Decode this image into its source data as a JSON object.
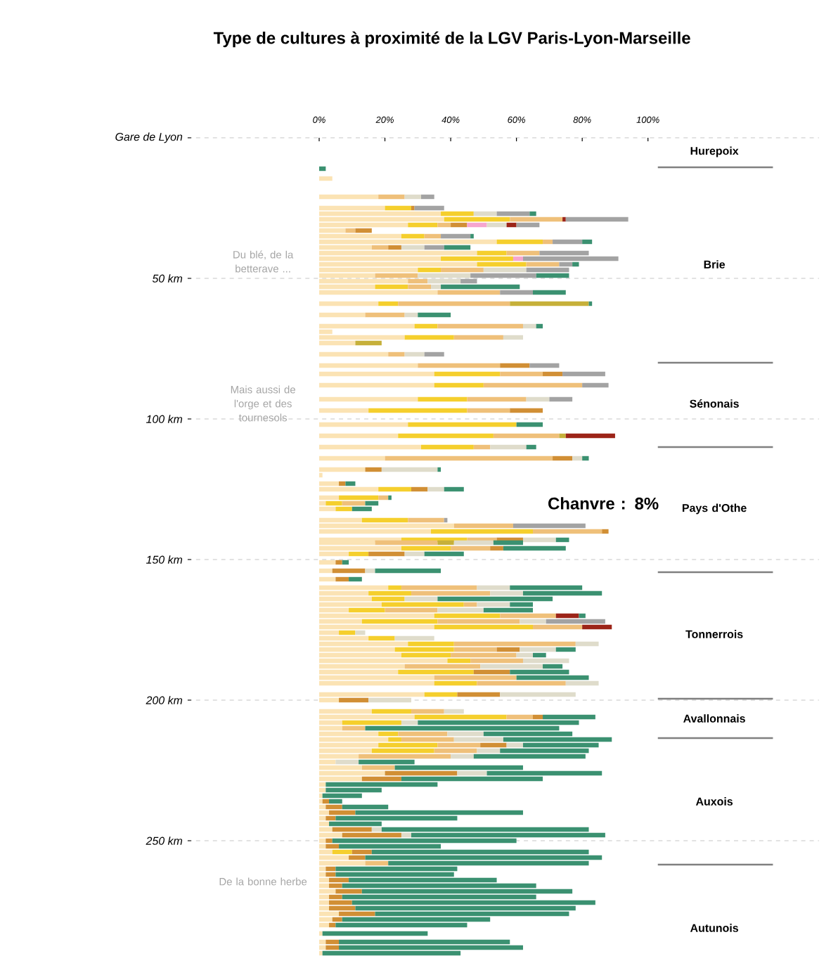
{
  "chart_data": {
    "type": "bar",
    "orientation": "horizontal",
    "stacked": true,
    "title": "Type de cultures à proximité de la LGV Paris-Lyon-Marseille",
    "x": [
      11,
      14.5,
      21,
      25,
      27,
      29,
      31,
      33,
      35,
      37,
      39,
      41,
      43,
      45,
      47,
      49,
      51,
      53,
      55,
      59,
      63,
      67,
      69,
      71,
      73,
      77,
      81,
      84,
      88,
      93,
      97,
      102,
      106,
      110,
      114,
      118,
      120,
      123,
      125,
      128,
      130,
      132,
      136,
      138,
      140,
      143,
      144,
      146,
      148,
      151,
      154,
      157,
      160,
      162,
      164,
      166,
      168,
      170,
      172,
      174,
      176,
      178,
      180,
      182,
      184,
      186,
      188,
      190,
      192,
      194,
      198,
      200,
      204,
      206,
      208,
      210,
      212,
      214,
      216,
      218,
      220,
      222,
      224,
      226,
      228,
      230,
      232,
      234,
      236,
      238,
      240,
      242,
      244,
      246,
      248,
      250,
      252,
      254,
      256,
      258,
      260,
      262,
      264,
      266,
      268,
      270,
      272,
      274,
      276,
      278,
      280,
      283,
      286,
      288,
      290
    ],
    "series": [
      {
        "color": "#fbe3b4",
        "values": [
          null,
          4,
          18,
          20,
          37,
          38,
          27,
          8,
          25,
          54,
          16,
          48,
          37,
          48,
          30,
          17,
          27,
          17,
          36,
          18,
          14,
          29,
          4,
          26,
          11,
          21,
          30,
          35,
          35,
          30,
          15,
          27,
          24,
          31,
          20,
          14,
          1,
          6,
          18,
          6,
          2,
          5,
          13,
          41,
          34,
          25,
          17,
          25,
          9,
          5,
          4,
          5,
          21,
          15,
          16,
          19,
          9,
          35,
          13,
          35,
          6,
          15,
          27,
          23,
          25,
          39,
          26,
          24,
          35,
          35,
          32,
          6,
          16,
          29,
          7,
          7,
          18,
          21,
          18,
          16,
          12,
          5,
          13,
          20,
          13,
          2,
          2,
          1,
          1,
          2,
          3,
          2,
          3,
          4,
          7,
          2,
          2,
          4,
          9,
          14,
          2,
          2,
          3,
          3,
          5,
          3,
          3,
          3,
          6,
          4,
          3,
          1,
          2,
          2,
          1
        ]
      },
      {
        "color": "#f5cf2d",
        "values": [
          null,
          null,
          null,
          8,
          10,
          20,
          9,
          null,
          7,
          14,
          null,
          9,
          22,
          15,
          7,
          null,
          null,
          10,
          null,
          6,
          null,
          7,
          null,
          15,
          null,
          null,
          null,
          20,
          15,
          15,
          30,
          33,
          29,
          16,
          null,
          null,
          null,
          null,
          10,
          12,
          5,
          5,
          14,
          null,
          31,
          20,
          null,
          15,
          6,
          null,
          null,
          null,
          4,
          13,
          10,
          25,
          11,
          20,
          23,
          30,
          5,
          8,
          14,
          18,
          15,
          7,
          null,
          23,
          null,
          13,
          10,
          null,
          12,
          28,
          18,
          null,
          6,
          4,
          18,
          19,
          null,
          null,
          null,
          null,
          null,
          null,
          null,
          null,
          null,
          null,
          null,
          null,
          null,
          null,
          null,
          null,
          null,
          6,
          null,
          null,
          null,
          null,
          null,
          null,
          null,
          null,
          null,
          null,
          null,
          null,
          null,
          null,
          null,
          null,
          null
        ]
      },
      {
        "color": "#efc07a",
        "values": [
          null,
          null,
          8,
          null,
          null,
          16,
          4,
          3,
          5,
          3,
          5,
          10,
          null,
          10,
          13,
          13,
          6,
          7,
          19,
          34,
          12,
          26,
          null,
          15,
          null,
          5,
          25,
          13,
          30,
          18,
          13,
          null,
          20,
          5,
          51,
          null,
          null,
          null,
          null,
          3,
          7,
          null,
          11,
          18,
          21,
          9,
          19,
          12,
          null,
          null,
          null,
          null,
          23,
          24,
          null,
          4,
          16,
          17,
          25,
          15,
          null,
          null,
          37,
          13,
          20,
          16,
          23,
          null,
          25,
          27,
          null,
          null,
          10,
          8,
          null,
          7,
          15,
          16,
          13,
          13,
          28,
          null,
          10,
          null,
          null,
          null,
          null,
          null,
          null,
          null,
          null,
          null,
          null,
          null,
          null,
          null,
          null,
          null,
          null,
          7,
          null,
          null,
          null,
          null,
          null,
          null,
          null,
          null,
          null,
          null,
          null,
          null,
          null,
          null,
          null
        ]
      },
      {
        "color": "#d18f35",
        "values": [
          null,
          null,
          null,
          1,
          null,
          null,
          5,
          5,
          null,
          null,
          4,
          null,
          null,
          null,
          null,
          null,
          null,
          null,
          null,
          null,
          null,
          null,
          null,
          null,
          null,
          null,
          9,
          6,
          null,
          null,
          10,
          null,
          null,
          null,
          6,
          5,
          null,
          2,
          5,
          null,
          null,
          null,
          null,
          null,
          2,
          8,
          null,
          4,
          11,
          2,
          10,
          4,
          null,
          null,
          null,
          null,
          null,
          null,
          null,
          null,
          null,
          null,
          null,
          7,
          null,
          null,
          null,
          11,
          null,
          null,
          13,
          9,
          null,
          3,
          null,
          null,
          null,
          null,
          8,
          null,
          null,
          null,
          null,
          22,
          12,
          null,
          null,
          null,
          2,
          5,
          8,
          3,
          null,
          12,
          18,
          2,
          4,
          6,
          5,
          null,
          3,
          3,
          6,
          4,
          8,
          4,
          7,
          8,
          11,
          3,
          2,
          null,
          4,
          4,
          null
        ]
      },
      {
        "color": "#c6b03a",
        "values": [
          null,
          null,
          null,
          null,
          null,
          null,
          null,
          null,
          null,
          null,
          null,
          null,
          null,
          null,
          null,
          null,
          null,
          null,
          null,
          24,
          null,
          null,
          null,
          null,
          8,
          null,
          null,
          null,
          null,
          null,
          null,
          null,
          2,
          null,
          null,
          null,
          null,
          null,
          null,
          null,
          null,
          null,
          null,
          null,
          null,
          null,
          5,
          null,
          null,
          null,
          null,
          null,
          null,
          null,
          null,
          null,
          null,
          null,
          null,
          null,
          null,
          null,
          null,
          null,
          null,
          null,
          null,
          null,
          null,
          null,
          null,
          null,
          null,
          null,
          null,
          null,
          null,
          null,
          null,
          null,
          null,
          null,
          null,
          null,
          null,
          null,
          null,
          null,
          null,
          null,
          null,
          null,
          null,
          null,
          null,
          null,
          null,
          null,
          null,
          null,
          null,
          null,
          null,
          null,
          null,
          null,
          null,
          null,
          null,
          null,
          null,
          null,
          null,
          null,
          null
        ]
      },
      {
        "color": "#f6a6cf",
        "values": [
          null,
          null,
          null,
          null,
          null,
          null,
          6,
          null,
          null,
          null,
          null,
          null,
          3,
          null,
          null,
          null,
          null,
          null,
          null,
          null,
          null,
          null,
          null,
          null,
          null,
          null,
          null,
          null,
          null,
          null,
          null,
          null,
          null,
          null,
          null,
          null,
          null,
          null,
          null,
          null,
          null,
          null,
          null,
          null,
          null,
          null,
          null,
          null,
          null,
          null,
          null,
          null,
          null,
          null,
          null,
          null,
          null,
          null,
          null,
          null,
          null,
          null,
          null,
          null,
          null,
          null,
          null,
          null,
          null,
          null,
          null,
          null,
          null,
          null,
          null,
          null,
          null,
          null,
          null,
          null,
          null,
          null,
          null,
          null,
          null,
          null,
          null,
          null,
          null,
          null,
          null,
          null,
          null,
          null,
          null,
          null,
          null,
          null,
          null,
          null,
          null,
          null,
          null,
          null,
          null,
          null,
          null,
          null,
          null,
          null,
          null,
          null,
          null,
          null,
          null
        ]
      },
      {
        "color": "#dfdccb",
        "values": [
          null,
          null,
          5,
          null,
          7,
          null,
          6,
          null,
          null,
          null,
          7,
          null,
          null,
          null,
          13,
          16,
          10,
          3,
          null,
          null,
          4,
          4,
          null,
          6,
          null,
          6,
          null,
          null,
          null,
          7,
          null,
          null,
          null,
          11,
          3,
          17,
          null,
          null,
          5,
          null,
          null,
          null,
          null,
          null,
          null,
          10,
          12,
          null,
          6,
          null,
          3,
          null,
          10,
          10,
          10,
          10,
          14,
          null,
          8,
          null,
          3,
          12,
          7,
          11,
          5,
          14,
          19,
          null,
          null,
          10,
          23,
          13,
          6,
          null,
          5,
          null,
          11,
          15,
          5,
          7,
          7,
          7,
          null,
          9,
          null,
          null,
          null,
          null,
          null,
          null,
          null,
          null,
          null,
          3,
          3,
          null,
          null,
          null,
          null,
          null,
          null,
          null,
          null,
          null,
          null,
          null,
          null,
          null,
          null,
          null,
          null,
          null,
          null,
          null,
          null
        ]
      },
      {
        "color": "#9c2418",
        "values": [
          null,
          null,
          null,
          null,
          null,
          1,
          3,
          null,
          null,
          null,
          null,
          null,
          null,
          null,
          null,
          null,
          null,
          null,
          null,
          null,
          null,
          null,
          null,
          null,
          null,
          null,
          null,
          null,
          null,
          null,
          null,
          null,
          15,
          null,
          null,
          null,
          null,
          null,
          null,
          null,
          null,
          null,
          null,
          null,
          null,
          null,
          null,
          null,
          null,
          null,
          null,
          null,
          null,
          null,
          null,
          null,
          null,
          7,
          null,
          9,
          null,
          null,
          null,
          null,
          null,
          null,
          null,
          null,
          null,
          null,
          null,
          null,
          null,
          null,
          null,
          null,
          null,
          null,
          null,
          null,
          null,
          null,
          null,
          null,
          null,
          null,
          null,
          null,
          null,
          null,
          null,
          null,
          null,
          null,
          null,
          null,
          null,
          null,
          null,
          null,
          null,
          null,
          null,
          null,
          null,
          null,
          null,
          null,
          null,
          null,
          null,
          null,
          null,
          null,
          null
        ]
      },
      {
        "color": "#a3a3a3",
        "values": [
          null,
          null,
          4,
          9,
          10,
          19,
          7,
          null,
          9,
          9,
          6,
          15,
          29,
          4,
          13,
          20,
          5,
          null,
          10,
          null,
          null,
          null,
          null,
          null,
          null,
          6,
          9,
          13,
          8,
          7,
          null,
          null,
          null,
          null,
          null,
          null,
          null,
          null,
          null,
          null,
          null,
          null,
          1,
          22,
          null,
          null,
          null,
          null,
          null,
          null,
          null,
          null,
          null,
          null,
          null,
          null,
          null,
          null,
          18,
          null,
          null,
          null,
          null,
          null,
          null,
          null,
          null,
          null,
          null,
          null,
          null,
          null,
          null,
          null,
          null,
          null,
          null,
          null,
          null,
          null,
          null,
          null,
          null,
          null,
          null,
          null,
          null,
          null,
          null,
          null,
          null,
          null,
          null,
          null,
          null,
          null,
          null,
          null,
          null,
          null,
          null,
          null,
          null,
          null,
          null,
          null,
          null,
          null,
          null,
          null,
          null,
          null,
          null,
          null,
          null
        ]
      },
      {
        "color": "#3b9171",
        "values": [
          2,
          null,
          null,
          null,
          2,
          null,
          null,
          null,
          1,
          3,
          8,
          null,
          null,
          2,
          null,
          10,
          null,
          24,
          10,
          1,
          10,
          2,
          null,
          null,
          null,
          null,
          null,
          null,
          null,
          null,
          null,
          8,
          null,
          3,
          2,
          1,
          null,
          3,
          6,
          1,
          4,
          6,
          null,
          null,
          null,
          4,
          9,
          19,
          12,
          2,
          20,
          4,
          22,
          24,
          35,
          7,
          15,
          2,
          null,
          null,
          null,
          null,
          null,
          6,
          4,
          null,
          6,
          18,
          22,
          null,
          null,
          null,
          null,
          16,
          49,
          59,
          27,
          33,
          23,
          27,
          34,
          17,
          39,
          35,
          43,
          34,
          17,
          12,
          4,
          14,
          51,
          37,
          16,
          63,
          59,
          56,
          31,
          66,
          72,
          61,
          37,
          36,
          45,
          59,
          64,
          59,
          74,
          67,
          59,
          45,
          40,
          32,
          52,
          56,
          42
        ]
      }
    ],
    "xlim": [
      -40,
      152
    ],
    "xticks": [
      {
        "value": 0,
        "label": "0%"
      },
      {
        "value": 20,
        "label": "20%"
      },
      {
        "value": 40,
        "label": "40%"
      },
      {
        "value": 60,
        "label": "60%"
      },
      {
        "value": 80,
        "label": "80%"
      },
      {
        "value": 100,
        "label": "100%"
      }
    ],
    "ylim": [
      291,
      0
    ],
    "yticks": [
      {
        "value": 0,
        "label": "Gare de Lyon"
      },
      {
        "value": 50,
        "label": "50 km"
      },
      {
        "value": 100,
        "label": "100 km"
      },
      {
        "value": 150,
        "label": "150 km"
      },
      {
        "value": 200,
        "label": "200 km"
      },
      {
        "value": 250,
        "label": "250 km"
      }
    ],
    "grid": "y",
    "ref_lines": [
      {
        "axis": "y",
        "value": 10.5,
        "color": "#808080"
      },
      {
        "axis": "y",
        "value": 80,
        "color": "#808080"
      },
      {
        "axis": "y",
        "value": 110,
        "color": "#808080"
      },
      {
        "axis": "y",
        "value": 154.5,
        "color": "#808080"
      },
      {
        "axis": "y",
        "value": 199.5,
        "color": "#808080"
      },
      {
        "axis": "y",
        "value": 213.5,
        "color": "#808080"
      },
      {
        "axis": "y",
        "value": 258.5,
        "color": "#808080"
      }
    ],
    "annotations": [
      "Chanvre : 8%",
      "Du blé, de la betterave ...",
      "Mais aussi de l'orge et des tournesols",
      "De la bonne herbe",
      "Hurepoix",
      "Brie",
      "Sénonais",
      "Pays d'Othe",
      "Tonnerrois",
      "Avallonnais",
      "Auxois",
      "Autunois"
    ]
  }
}
